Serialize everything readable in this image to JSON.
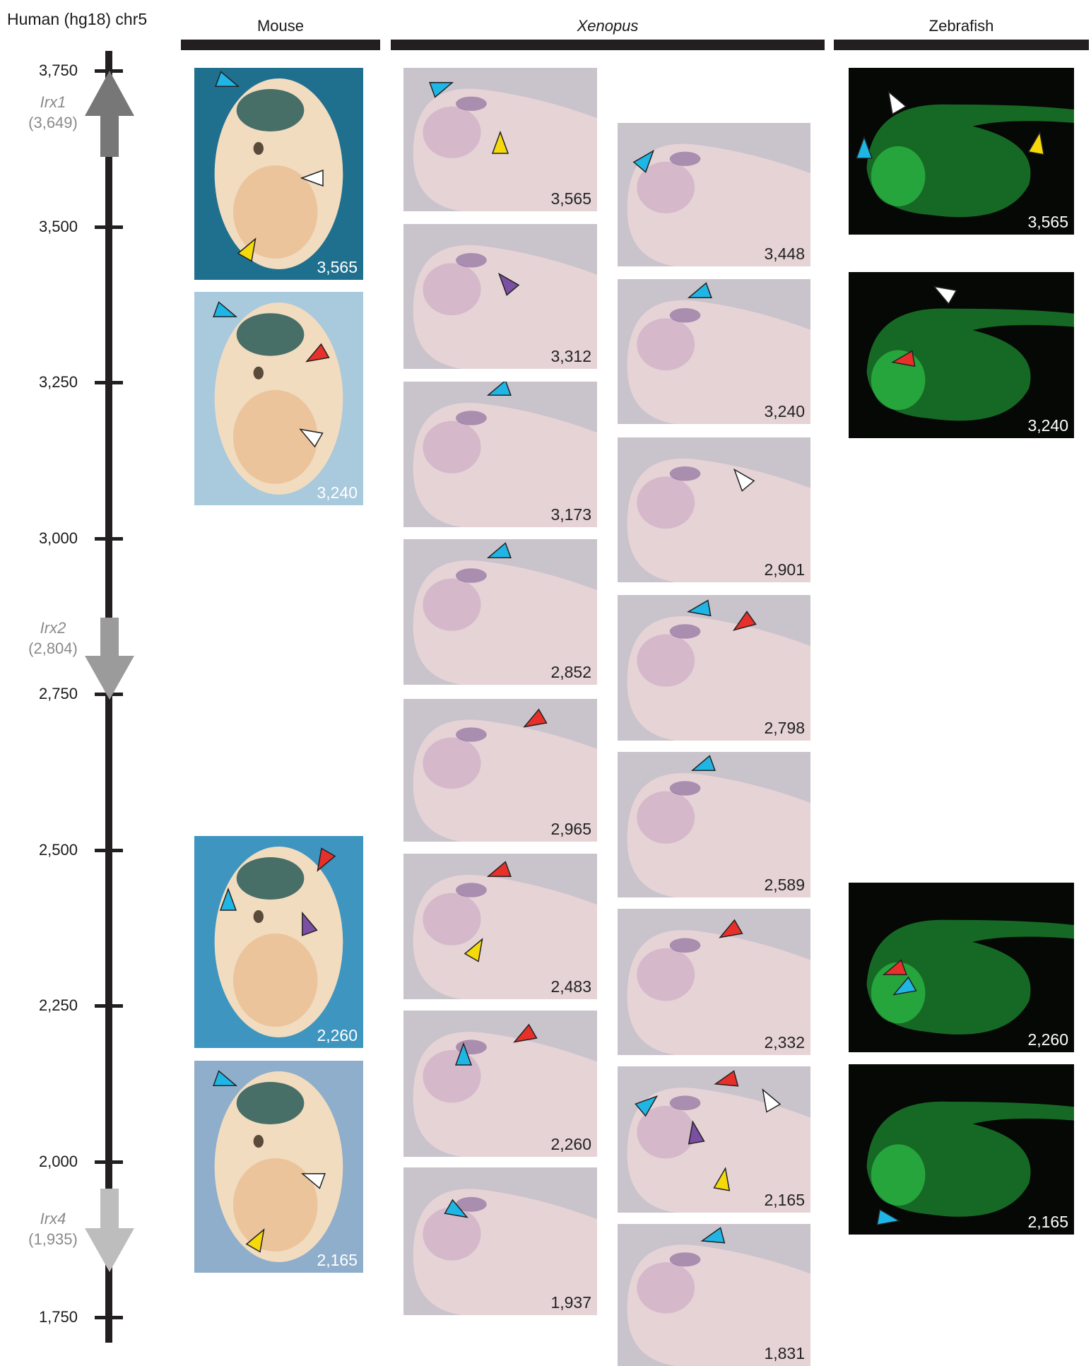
{
  "axis": {
    "title": "Human (hg18) chr5",
    "ticks": [
      "3,750",
      "3,500",
      "3,250",
      "3,000",
      "2,750",
      "2,500",
      "2,250",
      "2,000",
      "1,750"
    ],
    "genes": [
      {
        "name": "Irx1",
        "position": "(3,649)",
        "direction": "up"
      },
      {
        "name": "Irx2",
        "position": "(2,804)",
        "direction": "down"
      },
      {
        "name": "Irx4",
        "position": "(1,935)",
        "direction": "down"
      }
    ]
  },
  "columns": {
    "mouse": "Mouse",
    "xenopus": "Xenopus",
    "zebrafish": "Zebrafish"
  },
  "arrowhead_colors": {
    "cyan": "#1fb6e6",
    "yellow": "#f5d90a",
    "white": "#ffffff",
    "red": "#e8302a",
    "purple": "#7b4fa3"
  },
  "panels": [
    {
      "species": "mouse",
      "label": "3,565",
      "arrowheads": [
        "cyan",
        "white",
        "yellow"
      ]
    },
    {
      "species": "mouse",
      "label": "3,240",
      "arrowheads": [
        "cyan",
        "red",
        "white"
      ]
    },
    {
      "species": "mouse",
      "label": "2,260",
      "arrowheads": [
        "cyan",
        "red",
        "purple"
      ]
    },
    {
      "species": "mouse",
      "label": "2,165",
      "arrowheads": [
        "cyan",
        "white",
        "yellow"
      ]
    },
    {
      "species": "xenopus",
      "label": "3,565",
      "arrowheads": [
        "cyan",
        "yellow"
      ]
    },
    {
      "species": "xenopus",
      "label": "3,312",
      "arrowheads": [
        "purple"
      ]
    },
    {
      "species": "xenopus",
      "label": "3,173",
      "arrowheads": [
        "cyan"
      ]
    },
    {
      "species": "xenopus",
      "label": "2,852",
      "arrowheads": [
        "cyan"
      ]
    },
    {
      "species": "xenopus",
      "label": "2,965",
      "arrowheads": [
        "red"
      ]
    },
    {
      "species": "xenopus",
      "label": "2,483",
      "arrowheads": [
        "red",
        "yellow"
      ]
    },
    {
      "species": "xenopus",
      "label": "2,260",
      "arrowheads": [
        "red",
        "cyan"
      ]
    },
    {
      "species": "xenopus",
      "label": "1,937",
      "arrowheads": [
        "cyan"
      ]
    },
    {
      "species": "xenopus",
      "label": "3,448",
      "arrowheads": [
        "cyan"
      ]
    },
    {
      "species": "xenopus",
      "label": "3,240",
      "arrowheads": [
        "cyan"
      ]
    },
    {
      "species": "xenopus",
      "label": "2,901",
      "arrowheads": [
        "white"
      ]
    },
    {
      "species": "xenopus",
      "label": "2,798",
      "arrowheads": [
        "cyan",
        "red"
      ]
    },
    {
      "species": "xenopus",
      "label": "2,589",
      "arrowheads": [
        "cyan"
      ]
    },
    {
      "species": "xenopus",
      "label": "2,332",
      "arrowheads": [
        "red"
      ]
    },
    {
      "species": "xenopus",
      "label": "2,165",
      "arrowheads": [
        "cyan",
        "red",
        "white",
        "purple",
        "yellow"
      ]
    },
    {
      "species": "xenopus",
      "label": "1,831",
      "arrowheads": [
        "cyan"
      ]
    },
    {
      "species": "zebrafish",
      "label": "3,565",
      "arrowheads": [
        "white",
        "cyan",
        "yellow"
      ]
    },
    {
      "species": "zebrafish",
      "label": "3,240",
      "arrowheads": [
        "white",
        "red"
      ]
    },
    {
      "species": "zebrafish",
      "label": "2,260",
      "arrowheads": [
        "red",
        "cyan"
      ]
    },
    {
      "species": "zebrafish",
      "label": "2,165",
      "arrowheads": [
        "cyan"
      ]
    }
  ]
}
